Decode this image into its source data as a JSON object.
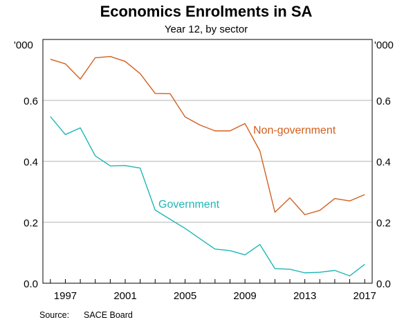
{
  "chart_data": {
    "type": "line",
    "title": "Economics Enrolments in SA",
    "subtitle": "Year 12, by sector",
    "y_unit": "'000",
    "ylim": [
      0,
      0.8
    ],
    "yticks": [
      0.0,
      0.2,
      0.4,
      0.6
    ],
    "ytick_labels": [
      "0.0",
      "0.2",
      "0.4",
      "0.6"
    ],
    "xlim": [
      1995.5,
      2017.5
    ],
    "xticks": [
      1997,
      2001,
      2005,
      2009,
      2013,
      2017
    ],
    "xtick_labels": [
      "1997",
      "2001",
      "2005",
      "2009",
      "2013",
      "2017"
    ],
    "grid": true,
    "x": [
      1996,
      1997,
      1998,
      1999,
      2000,
      2001,
      2002,
      2003,
      2004,
      2005,
      2006,
      2007,
      2008,
      2009,
      2010,
      2011,
      2012,
      2013,
      2014,
      2015,
      2016,
      2017
    ],
    "series": [
      {
        "name": "Non-government",
        "color": "#d25f1e",
        "values": [
          0.735,
          0.72,
          0.67,
          0.74,
          0.744,
          0.728,
          0.688,
          0.623,
          0.622,
          0.546,
          0.519,
          0.5,
          0.5,
          0.524,
          0.434,
          0.233,
          0.28,
          0.225,
          0.239,
          0.278,
          0.27,
          0.291
        ]
      },
      {
        "name": "Government",
        "color": "#1fb5b5",
        "values": [
          0.547,
          0.488,
          0.51,
          0.418,
          0.385,
          0.386,
          0.378,
          0.24,
          0.21,
          0.18,
          0.146,
          0.112,
          0.107,
          0.093,
          0.127,
          0.048,
          0.046,
          0.034,
          0.036,
          0.042,
          0.024,
          0.062
        ]
      }
    ],
    "source_label": "Source:",
    "source_value": "SACE Board"
  }
}
